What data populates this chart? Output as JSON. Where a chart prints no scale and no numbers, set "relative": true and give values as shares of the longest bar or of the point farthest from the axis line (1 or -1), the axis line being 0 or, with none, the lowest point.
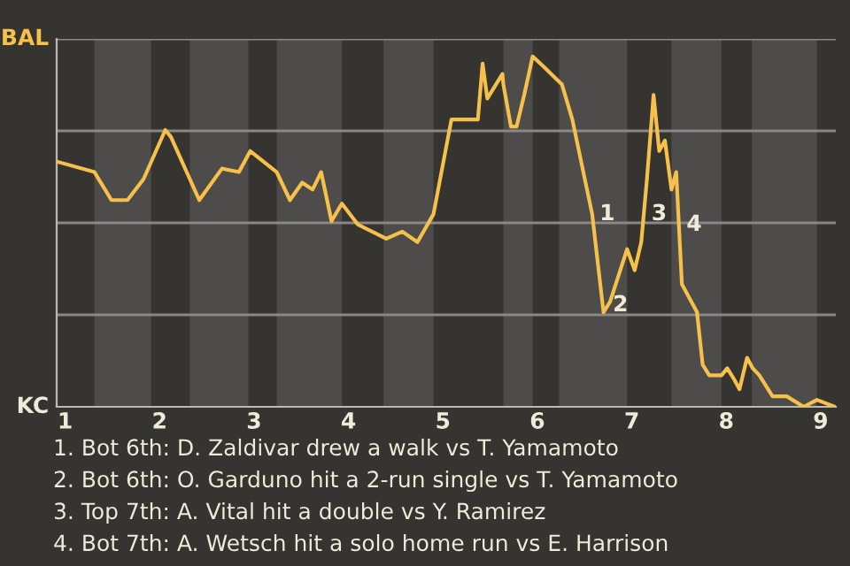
{
  "chart_data": {
    "type": "line",
    "xlim": [
      0.91,
      9.16
    ],
    "relative": true,
    "xticks": [
      1,
      2,
      3,
      4,
      5,
      6,
      7,
      8,
      9
    ],
    "grid": "y",
    "series": [
      {
        "color": "#f6c14b",
        "x": [
          0.91,
          1.31,
          1.49,
          1.66,
          1.83,
          2.06,
          2.12,
          2.42,
          2.66,
          2.84,
          2.96,
          3.24,
          3.38,
          3.51,
          3.62,
          3.71,
          3.82,
          3.93,
          4.1,
          4.4,
          4.57,
          4.73,
          4.9,
          5.09,
          5.37,
          5.42,
          5.47,
          5.63,
          5.64,
          5.72,
          5.78,
          5.86,
          5.95,
          6.07,
          6.26,
          6.37,
          6.58,
          6.7,
          6.77,
          6.95,
          7.03,
          7.1,
          7.16,
          7.23,
          7.29,
          7.35,
          7.42,
          7.47,
          7.53,
          7.69,
          7.75,
          7.82,
          7.95,
          8.01,
          8.08,
          8.14,
          8.22,
          8.28,
          8.35,
          8.49,
          8.64,
          8.82,
          8.96,
          9.15
        ],
        "values": [
          0.7,
          0.67,
          0.59,
          0.59,
          0.65,
          0.79,
          0.77,
          0.59,
          0.68,
          0.67,
          0.73,
          0.67,
          0.59,
          0.64,
          0.62,
          0.67,
          0.53,
          0.58,
          0.52,
          0.48,
          0.5,
          0.47,
          0.55,
          0.82,
          0.82,
          0.98,
          0.88,
          0.95,
          0.92,
          0.8,
          0.8,
          0.89,
          1,
          0.97,
          0.92,
          0.82,
          0.55,
          0.27,
          0.3,
          0.45,
          0.39,
          0.47,
          0.65,
          0.89,
          0.73,
          0.76,
          0.62,
          0.67,
          0.35,
          0.27,
          0.12,
          0.09,
          0.09,
          0.11,
          0.08,
          0.05,
          0.14,
          0.11,
          0.09,
          0.03,
          0.03,
          0,
          0.02,
          0
        ]
      }
    ],
    "bands": [
      {
        "axis": "x",
        "from": 1.31,
        "to": 1.91,
        "color": "#4d4c4a"
      },
      {
        "axis": "x",
        "from": 2.32,
        "to": 2.94,
        "color": "#4d4c4a"
      },
      {
        "axis": "x",
        "from": 3.24,
        "to": 3.93,
        "color": "#4d4c4a"
      },
      {
        "axis": "x",
        "from": 4.37,
        "to": 4.9,
        "color": "#4d4c4a"
      },
      {
        "axis": "x",
        "from": 5.64,
        "to": 5.95,
        "color": "#4d4c4a"
      },
      {
        "axis": "x",
        "from": 6.23,
        "to": 6.95,
        "color": "#4d4c4a"
      },
      {
        "axis": "x",
        "from": 7.42,
        "to": 7.95,
        "color": "#4d4c4a"
      },
      {
        "axis": "x",
        "from": 8.27,
        "to": 8.96,
        "color": "#4d4c4a"
      }
    ],
    "annotations": [
      "BAL",
      "KC",
      {
        "text": "1",
        "x": 6.58,
        "y": 0.55
      },
      {
        "text": "2",
        "x": 6.72,
        "y": 0.29
      },
      {
        "text": "3",
        "x": 7.13,
        "y": 0.55
      },
      {
        "text": "4",
        "x": 7.5,
        "y": 0.52
      },
      "1. Bot 6th: D. Zaldivar drew a walk vs T. Yamamoto",
      "2. Bot 6th: O. Garduno hit a 2-run single vs T. Yamamoto",
      "3. Top 7th: A. Vital hit a double vs Y. Ramirez",
      "4. Bot 7th: A. Wetsch hit a solo home run vs E. Harrison"
    ]
  }
}
